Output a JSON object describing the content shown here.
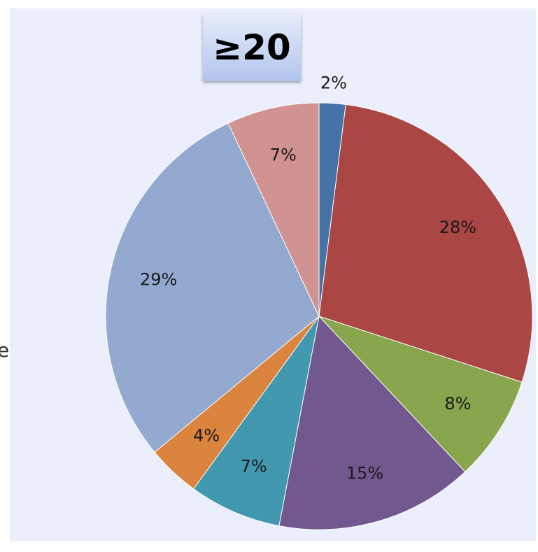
{
  "edge_text": "e",
  "chart_data": {
    "type": "pie",
    "title": "≥20",
    "start_angle_deg": 0,
    "direction": "clockwise",
    "slices": [
      {
        "label": "2%",
        "value": 2,
        "color": "#4572a7"
      },
      {
        "label": "28%",
        "value": 28,
        "color": "#aa4643"
      },
      {
        "label": "8%",
        "value": 8,
        "color": "#89a54e"
      },
      {
        "label": "15%",
        "value": 15,
        "color": "#71588f"
      },
      {
        "label": "7%",
        "value": 7,
        "color": "#4198af"
      },
      {
        "label": "4%",
        "value": 4,
        "color": "#db843d"
      },
      {
        "label": "29%",
        "value": 29,
        "color": "#93a9cf"
      },
      {
        "label": "7%",
        "value": 7,
        "color": "#d19392"
      }
    ]
  }
}
